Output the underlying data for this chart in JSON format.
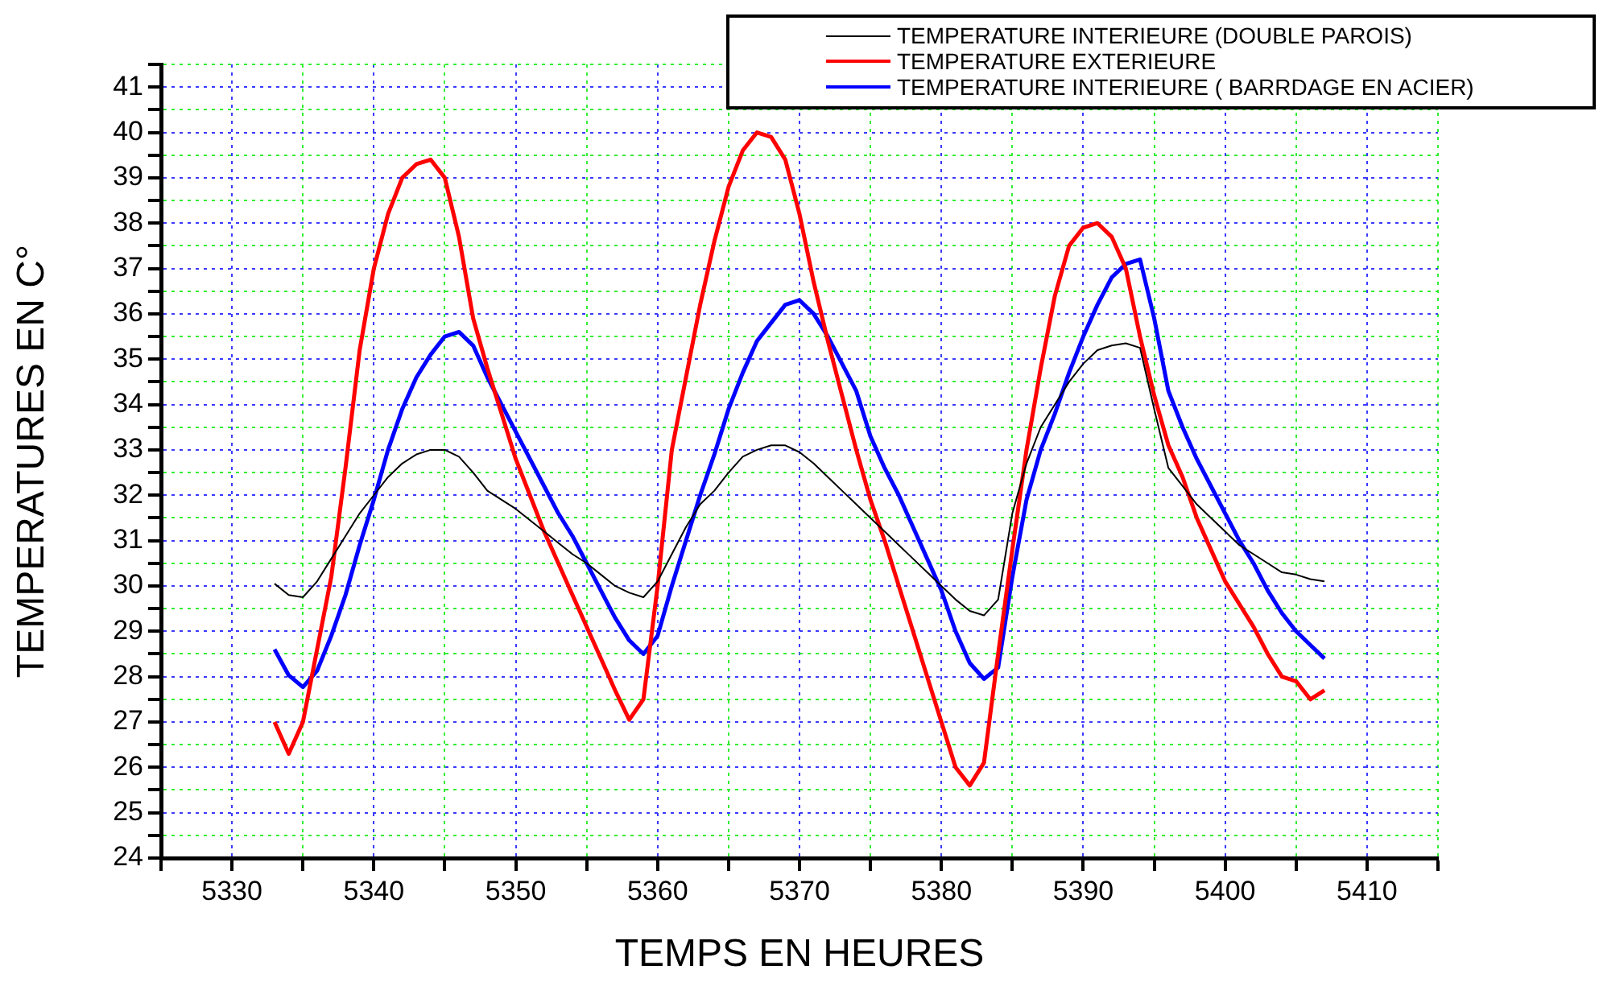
{
  "chart_data": {
    "type": "line",
    "xlabel": "TEMPS EN HEURES",
    "ylabel": "TEMPERATURES EN C°",
    "x": [
      5333,
      5334,
      5335,
      5336,
      5337,
      5338,
      5339,
      5340,
      5341,
      5342,
      5343,
      5344,
      5345,
      5346,
      5347,
      5348,
      5349,
      5350,
      5351,
      5352,
      5353,
      5354,
      5355,
      5356,
      5357,
      5358,
      5359,
      5360,
      5361,
      5362,
      5363,
      5364,
      5365,
      5366,
      5367,
      5368,
      5369,
      5370,
      5371,
      5372,
      5373,
      5374,
      5375,
      5376,
      5377,
      5378,
      5379,
      5380,
      5381,
      5382,
      5383,
      5384,
      5385,
      5386,
      5387,
      5388,
      5389,
      5390,
      5391,
      5392,
      5393,
      5394,
      5395,
      5396,
      5397,
      5398,
      5399,
      5400,
      5401,
      5402,
      5403,
      5404,
      5405,
      5406,
      5407
    ],
    "series": [
      {
        "name": "TEMPERATURE INTERIEURE (DOUBLE PAROIS)",
        "color": "#000000",
        "values": [
          30.05,
          29.8,
          29.75,
          30.1,
          30.6,
          31.1,
          31.6,
          32.0,
          32.4,
          32.7,
          32.9,
          33.0,
          33.0,
          32.85,
          32.5,
          32.1,
          31.9,
          31.7,
          31.45,
          31.2,
          30.95,
          30.7,
          30.5,
          30.25,
          30.0,
          29.85,
          29.75,
          30.1,
          30.7,
          31.3,
          31.8,
          32.1,
          32.5,
          32.85,
          33.0,
          33.1,
          33.1,
          32.95,
          32.7,
          32.4,
          32.1,
          31.8,
          31.5,
          31.2,
          30.9,
          30.6,
          30.3,
          30.0,
          29.7,
          29.45,
          29.35,
          29.7,
          31.6,
          32.7,
          33.5,
          34.0,
          34.5,
          34.9,
          35.2,
          35.3,
          35.35,
          35.25,
          33.9,
          32.6,
          32.2,
          31.8,
          31.5,
          31.2,
          30.9,
          30.7,
          30.5,
          30.3,
          30.25,
          30.15,
          30.1
        ]
      },
      {
        "name": "TEMPERATURE EXTERIEURE",
        "color": "#ff0000",
        "values": [
          27.0,
          26.3,
          27.0,
          28.6,
          30.2,
          32.6,
          35.2,
          37.0,
          38.2,
          39.0,
          39.3,
          39.4,
          39.0,
          37.7,
          35.9,
          34.8,
          33.8,
          32.8,
          32.0,
          31.2,
          30.5,
          29.8,
          29.1,
          28.4,
          27.7,
          27.05,
          27.5,
          30.0,
          33.0,
          34.6,
          36.2,
          37.6,
          38.8,
          39.6,
          40.0,
          39.9,
          39.4,
          38.2,
          36.7,
          35.4,
          34.2,
          33.0,
          31.9,
          31.0,
          30.0,
          29.0,
          28.0,
          27.0,
          26.0,
          25.6,
          26.1,
          28.5,
          30.8,
          33.0,
          34.8,
          36.4,
          37.5,
          37.9,
          38.0,
          37.7,
          37.0,
          35.5,
          34.2,
          33.1,
          32.4,
          31.5,
          30.8,
          30.1,
          29.6,
          29.1,
          28.5,
          28.0,
          27.9,
          27.5,
          27.7
        ]
      },
      {
        "name": "TEMPERATURE INTERIEURE ( BARRDAGE EN ACIER)",
        "color": "#0000ff",
        "values": [
          28.6,
          28.03,
          27.77,
          28.13,
          28.9,
          29.8,
          30.9,
          31.9,
          33.0,
          33.9,
          34.6,
          35.1,
          35.5,
          35.6,
          35.3,
          34.6,
          34.0,
          33.4,
          32.8,
          32.2,
          31.6,
          31.1,
          30.5,
          29.9,
          29.3,
          28.8,
          28.5,
          28.9,
          30.0,
          31.0,
          32.0,
          32.9,
          33.9,
          34.7,
          35.4,
          35.8,
          36.2,
          36.3,
          36.0,
          35.5,
          34.9,
          34.3,
          33.3,
          32.6,
          32.0,
          31.3,
          30.6,
          29.9,
          29.0,
          28.3,
          27.95,
          28.2,
          30.2,
          31.9,
          33.0,
          33.8,
          34.7,
          35.5,
          36.2,
          36.8,
          37.1,
          37.2,
          35.9,
          34.3,
          33.5,
          32.8,
          32.2,
          31.6,
          31.0,
          30.5,
          29.9,
          29.4,
          29.0,
          28.7,
          28.4
        ]
      }
    ],
    "xlim": [
      5325,
      5415
    ],
    "xticks": [
      {
        "value": 5325,
        "label": null
      },
      5330,
      {
        "value": 5335,
        "label": null
      },
      5340,
      {
        "value": 5345,
        "label": null
      },
      5350,
      {
        "value": 5355,
        "label": null
      },
      5360,
      {
        "value": 5365,
        "label": null
      },
      5370,
      {
        "value": 5375,
        "label": null
      },
      5380,
      {
        "value": 5385,
        "label": null
      },
      5390,
      {
        "value": 5395,
        "label": null
      },
      5400,
      {
        "value": 5405,
        "label": null
      },
      5410,
      {
        "value": 5415,
        "label": null
      }
    ],
    "ylim": [
      24,
      41.5
    ],
    "yticks": [
      24,
      {
        "value": 24.5,
        "label": null
      },
      25,
      {
        "value": 25.5,
        "label": null
      },
      26,
      {
        "value": 26.5,
        "label": null
      },
      27,
      {
        "value": 27.5,
        "label": null
      },
      28,
      {
        "value": 28.5,
        "label": null
      },
      29,
      {
        "value": 29.5,
        "label": null
      },
      30,
      {
        "value": 30.5,
        "label": null
      },
      31,
      {
        "value": 31.5,
        "label": null
      },
      32,
      {
        "value": 32.5,
        "label": null
      },
      33,
      {
        "value": 33.5,
        "label": null
      },
      34,
      {
        "value": 34.5,
        "label": null
      },
      35,
      {
        "value": 35.5,
        "label": null
      },
      36,
      {
        "value": 36.5,
        "label": null
      },
      37,
      {
        "value": 37.5,
        "label": null
      },
      38,
      {
        "value": 38.5,
        "label": null
      },
      39,
      {
        "value": 39.5,
        "label": null
      },
      40,
      {
        "value": 40.5,
        "label": null
      },
      41,
      {
        "value": 41.5,
        "label": null
      }
    ],
    "grid": true,
    "legend": "top right",
    "marker": "none",
    "line_style": "solid"
  }
}
